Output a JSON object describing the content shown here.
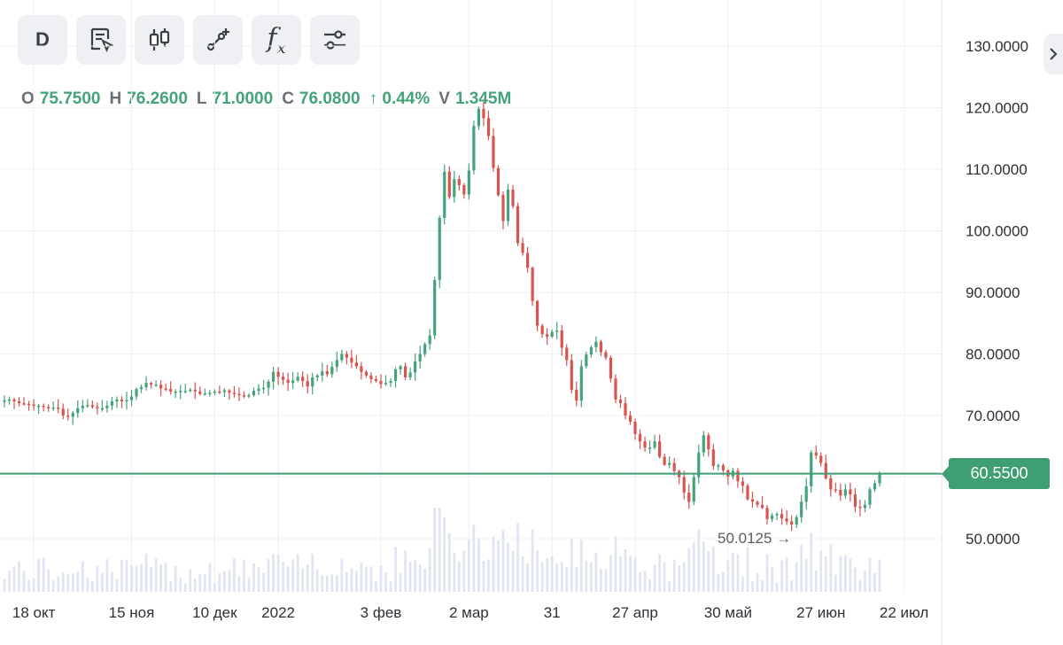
{
  "toolbar": {
    "interval_label": "D",
    "buttons": [
      "interval",
      "notes-cursor-icon",
      "candles-icon",
      "draw-line-icon",
      "indicators-fx-icon",
      "settings-sliders-icon"
    ],
    "fx_label": "f",
    "fx_sub": "x"
  },
  "ohlc": {
    "o_key": "O",
    "o": "75.7500",
    "h_key": "H",
    "h": "76.2600",
    "l_key": "L",
    "l": "71.0000",
    "c_key": "C",
    "c": "76.0800",
    "change": "↑ 0.44%",
    "v_key": "V",
    "v": "1.345M"
  },
  "price_tag": "60.5500",
  "min_label": "50.0125 →",
  "colors": {
    "up": "#45a37a",
    "down": "#d9534f",
    "volume": "#dfe3f2",
    "line": "#3f9f74"
  },
  "chart_data": {
    "type": "candlestick",
    "ylim": [
      43,
      135
    ],
    "y_ticks": [
      "130.0000",
      "120.0000",
      "110.0000",
      "100.0000",
      "90.0000",
      "80.0000",
      "70.0000",
      "60.0000",
      "50.0000"
    ],
    "y_tick_values": [
      130,
      120,
      110,
      100,
      90,
      80,
      70,
      60,
      50
    ],
    "x_ticks": [
      "18 окт",
      "15 ноя",
      "10 дек",
      "2022",
      "3 фев",
      "2 мар",
      "31",
      "27 апр",
      "30 май",
      "27 июн",
      "22 июл"
    ],
    "x_tick_index": [
      6,
      26,
      43,
      56,
      77,
      95,
      112,
      129,
      148,
      167,
      184
    ],
    "current_price": 60.55,
    "period_low": 50.0125,
    "closes": [
      72.5,
      72.6,
      72.3,
      72.0,
      71.9,
      71.8,
      71.6,
      71.6,
      71.4,
      71.3,
      71.3,
      71.1,
      70.0,
      69.8,
      70.4,
      71.2,
      71.6,
      71.7,
      71.4,
      71.2,
      71.2,
      71.6,
      72.3,
      72.6,
      72.3,
      72.5,
      73.1,
      74.3,
      74.6,
      75.3,
      75.0,
      75.0,
      74.4,
      74.3,
      73.9,
      73.9,
      74.0,
      74.0,
      74.2,
      73.9,
      73.5,
      73.6,
      73.7,
      73.9,
      73.8,
      74.1,
      73.7,
      73.5,
      73.3,
      73.1,
      73.3,
      74.0,
      74.4,
      74.5,
      75.5,
      77.1,
      76.3,
      75.8,
      75.3,
      75.7,
      76.3,
      75.6,
      74.7,
      76.2,
      76.5,
      77.2,
      76.7,
      77.9,
      79.0,
      80.0,
      79.4,
      78.6,
      78.0,
      77.1,
      76.5,
      75.9,
      75.6,
      75.1,
      75.3,
      75.6,
      77.5,
      78.0,
      76.2,
      77.0,
      78.8,
      80.0,
      81.6,
      83.0,
      92.0,
      102.1,
      109.6,
      105.5,
      108.4,
      107.4,
      105.9,
      109.8,
      117.0,
      119.8,
      118.3,
      115.4,
      110.2,
      105.8,
      101.6,
      106.7,
      104.0,
      98.0,
      96.4,
      94.0,
      88.6,
      84.6,
      83.2,
      82.8,
      83.6,
      83.8,
      81.0,
      79.0,
      74.2,
      72.4,
      78.0,
      79.9,
      81.1,
      82.0,
      80.3,
      79.4,
      76.0,
      72.6,
      72.0,
      70.0,
      69.0,
      67.0,
      65.8,
      64.8,
      64.8,
      65.8,
      63.3,
      62.0,
      62.3,
      61.0,
      60.0,
      57.5,
      56.0,
      60.0,
      64.0,
      66.8,
      64.5,
      61.8,
      61.9,
      61.1,
      60.1,
      61.0,
      59.3,
      58.6,
      56.4,
      56.0,
      55.5,
      55.0,
      53.2,
      53.8,
      54.0,
      53.3,
      52.8,
      52.3,
      53.5,
      56.0,
      58.5,
      64.0,
      63.5,
      62.3,
      59.8,
      58.0,
      57.9,
      57.0,
      58.0,
      57.2,
      55.2,
      55.0,
      55.5,
      58.0,
      59.0,
      60.55
    ]
  }
}
